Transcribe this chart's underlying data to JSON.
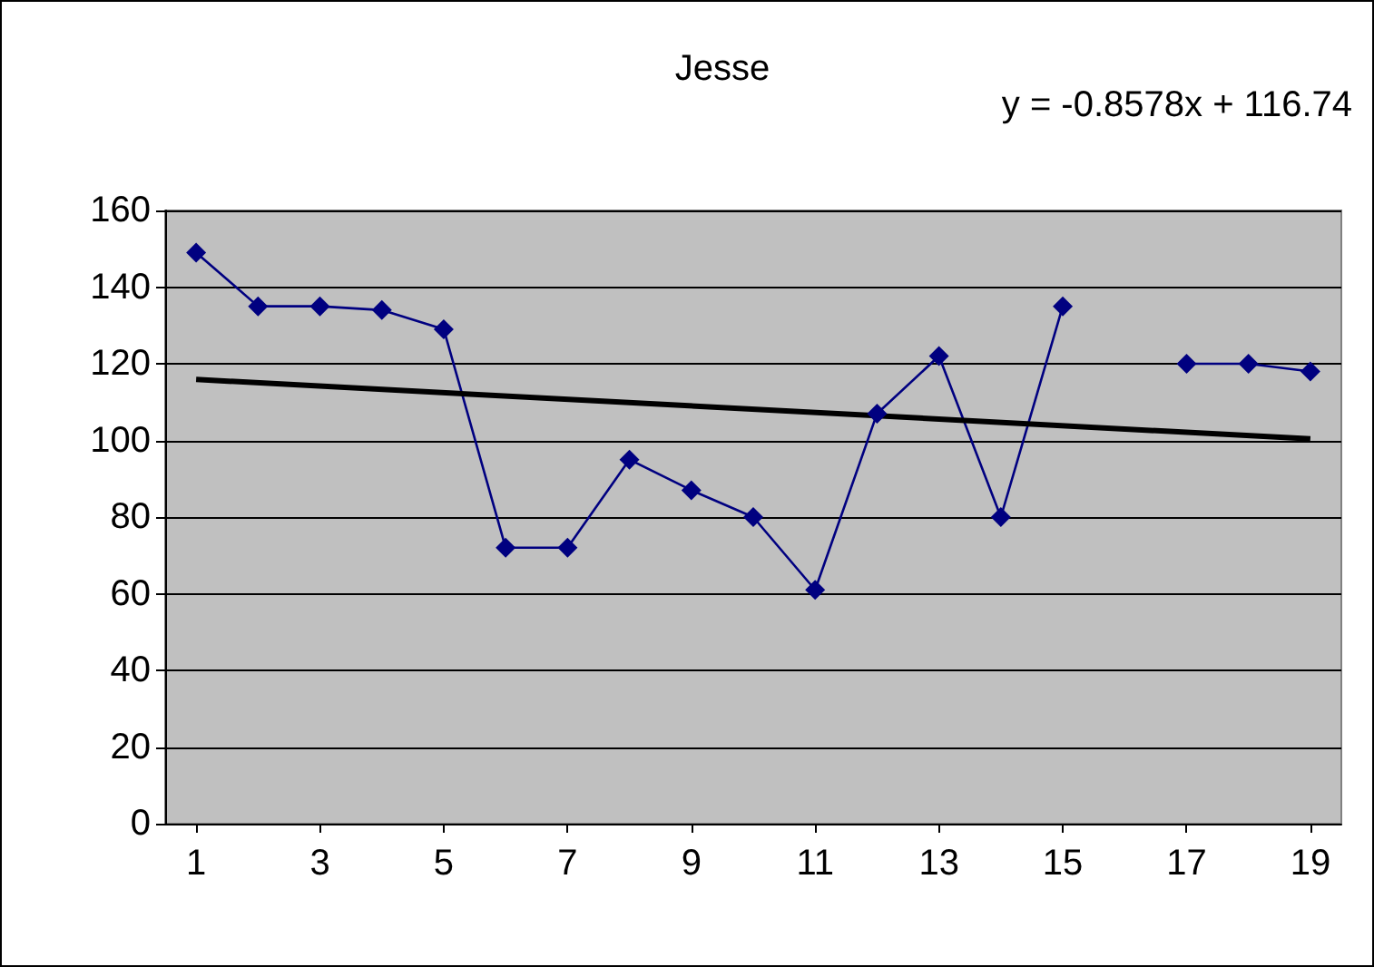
{
  "chart_data": {
    "type": "line",
    "title": "Jesse",
    "annotations": [
      "y = -0.8578x + 116.74"
    ],
    "x": [
      1,
      2,
      3,
      4,
      5,
      6,
      7,
      8,
      9,
      10,
      11,
      12,
      13,
      14,
      15,
      16,
      17,
      18,
      19
    ],
    "series": [
      {
        "color": "#000080",
        "marker": "diamond",
        "values": [
          149,
          135,
          135,
          134,
          129,
          72,
          72,
          95,
          87,
          80,
          61,
          107,
          122,
          80,
          135,
          null,
          120,
          120,
          118
        ]
      },
      {
        "type": "line",
        "color": "#000000",
        "marker": "none",
        "x": [
          1,
          19
        ],
        "values": [
          115.9,
          100.4
        ]
      }
    ],
    "xlim": [
      0.5,
      19.5
    ],
    "xticks": [
      1,
      3,
      5,
      7,
      9,
      11,
      13,
      15,
      17,
      19
    ],
    "ylim": [
      0,
      160
    ],
    "yticks": [
      0,
      20,
      40,
      60,
      80,
      100,
      120,
      140,
      160
    ],
    "grid": "y"
  }
}
